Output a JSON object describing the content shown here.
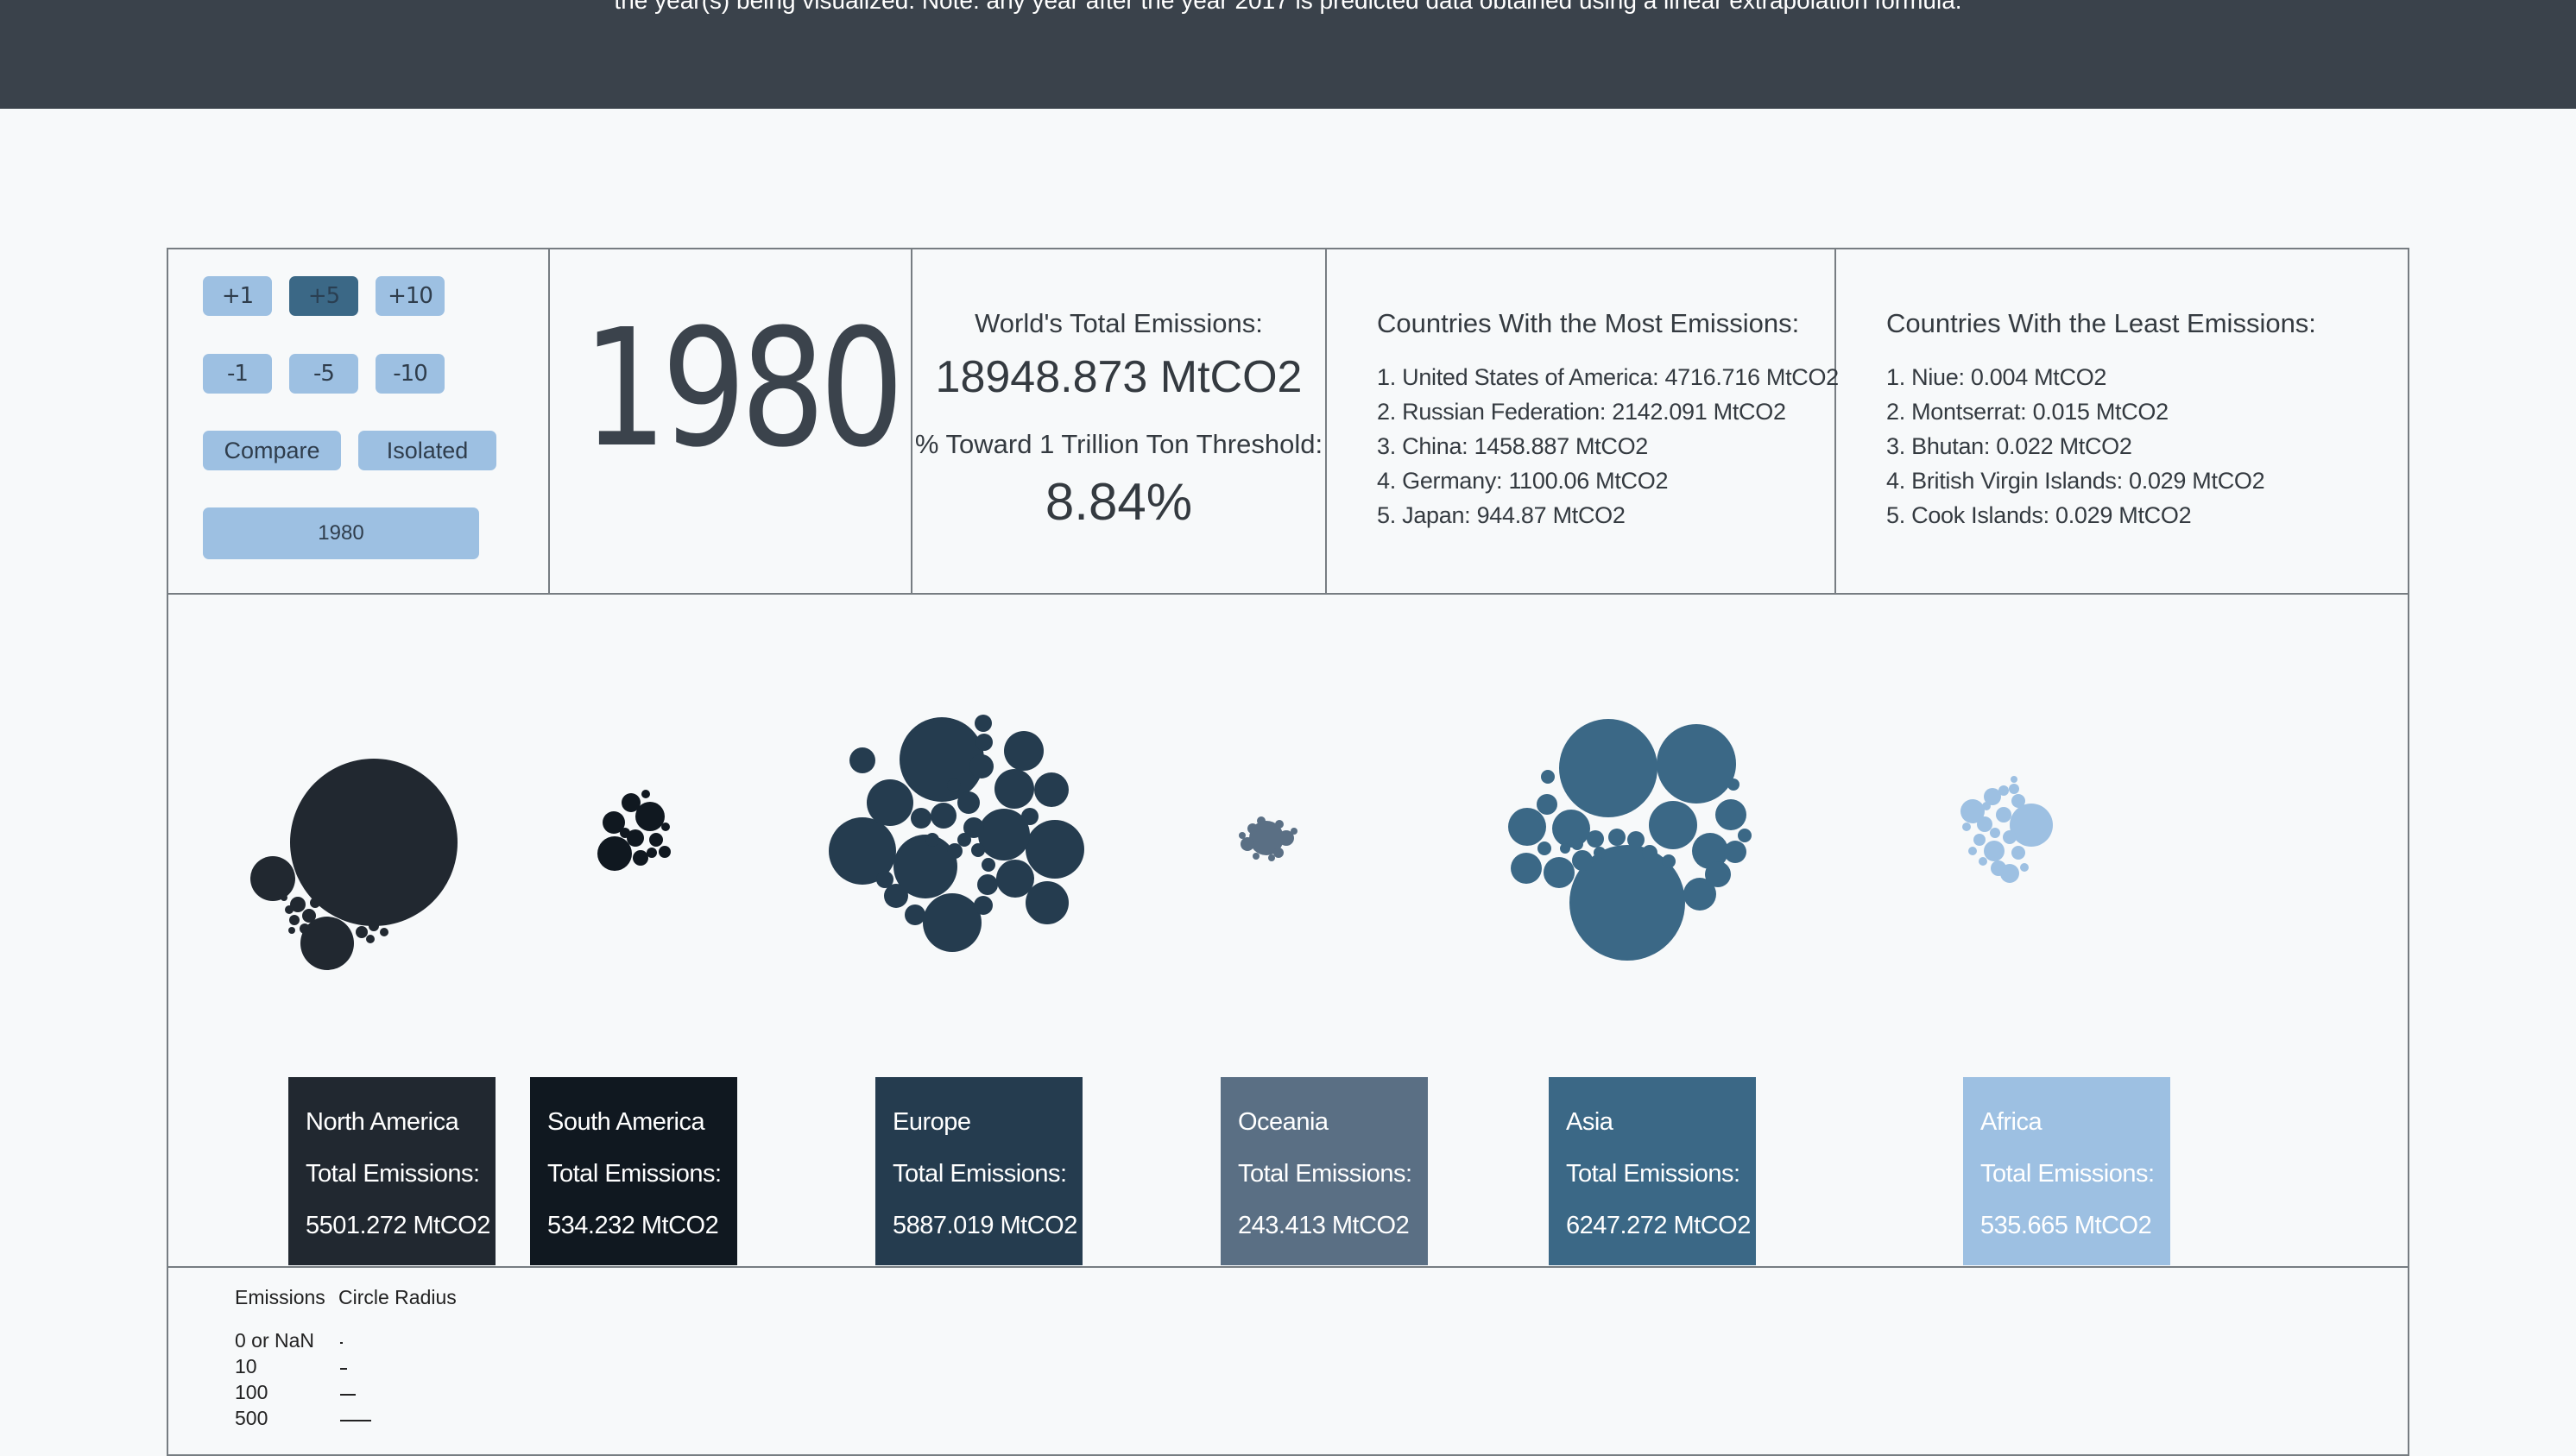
{
  "header": {
    "intro_text": "the year(s) being visualized. Note: any year after the year 2017 is predicted data obtained using a linear extrapolation formula."
  },
  "controls": {
    "plus1": "+1",
    "plus5": "+5",
    "plus10": "+10",
    "minus1": "-1",
    "minus5": "-5",
    "minus10": "-10",
    "compare": "Compare",
    "isolated": "Isolated",
    "year_field": "1980",
    "active_step": "+5"
  },
  "year_display": "1980",
  "world": {
    "total_label": "World's Total Emissions:",
    "total_value": "18948.873 MtCO2",
    "threshold_label": "% Toward 1 Trillion Ton Threshold:",
    "threshold_value": "8.84%"
  },
  "most": {
    "title": "Countries With the Most Emissions:",
    "items": [
      "1. United States of America: 4716.716 MtCO2",
      "2. Russian Federation: 2142.091 MtCO2",
      "3. China: 1458.887 MtCO2",
      "4. Germany: 1100.06 MtCO2",
      "5. Japan: 944.87 MtCO2"
    ]
  },
  "least": {
    "title": "Countries With the Least Emissions:",
    "items": [
      "1. Niue: 0.004 MtCO2",
      "2. Montserrat: 0.015 MtCO2",
      "3. Bhutan: 0.022 MtCO2",
      "4. British Virgin Islands: 0.029 MtCO2",
      "5. Cook Islands: 0.029 MtCO2"
    ]
  },
  "regions": [
    {
      "name": "North America",
      "total_label": "Total Emissions:",
      "total": "5501.272 MtCO2",
      "color": "#212830"
    },
    {
      "name": "South America",
      "total_label": "Total Emissions:",
      "total": "534.232 MtCO2",
      "color": "#101820"
    },
    {
      "name": "Europe",
      "total_label": "Total Emissions:",
      "total": "5887.019 MtCO2",
      "color": "#253c4f"
    },
    {
      "name": "Oceania",
      "total_label": "Total Emissions:",
      "total": "243.413 MtCO2",
      "color": "#5a6f84"
    },
    {
      "name": "Asia",
      "total_label": "Total Emissions:",
      "total": "6247.272 MtCO2",
      "color": "#3b6886"
    },
    {
      "name": "Africa",
      "total_label": "Total Emissions:",
      "total": "535.665 MtCO2",
      "color": "#9dc0e2"
    }
  ],
  "legend": {
    "emissions_header": "Emissions",
    "radius_header": "Circle Radius",
    "rows": [
      "0 or NaN",
      "10",
      "100",
      "500"
    ]
  }
}
